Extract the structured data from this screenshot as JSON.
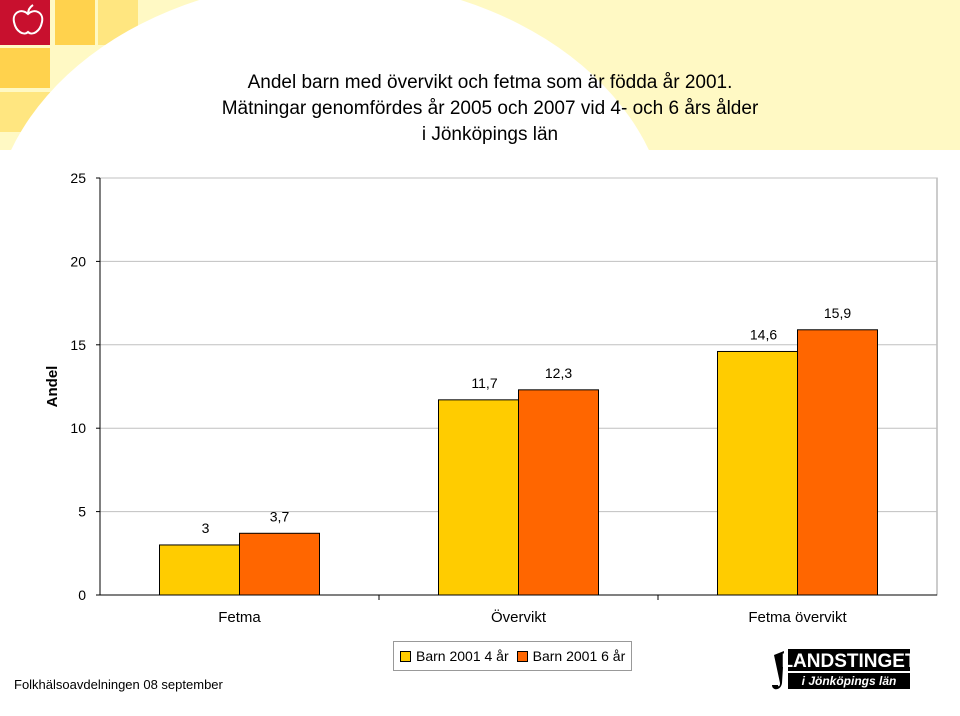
{
  "title_lines": [
    "Andel barn med övervikt och fetma som är födda år 2001.",
    "Mätningar genomfördes år 2005 och 2007 vid 4- och 6 års ålder",
    "i Jönköpings län"
  ],
  "colors": {
    "series1": "#ffcc00",
    "series2": "#ff6600",
    "background": "#fff9c4",
    "grid": "#c0c0c0"
  },
  "chart_data": {
    "type": "bar",
    "categories": [
      "Fetma",
      "Övervikt",
      "Fetma övervikt"
    ],
    "series": [
      {
        "name": "Barn 2001  4 år",
        "values": [
          3,
          11.7,
          14.6
        ],
        "labels": [
          "3",
          "11,7",
          "14,6"
        ]
      },
      {
        "name": "Barn 2001  6 år",
        "values": [
          3.7,
          12.3,
          15.9
        ],
        "labels": [
          "3,7",
          "12,3",
          "15,9"
        ]
      }
    ],
    "ylabel": "Andel",
    "xlabel": "",
    "ylim": [
      0,
      25
    ],
    "yticks": [
      0,
      5,
      10,
      15,
      20,
      25
    ],
    "ytick_labels": [
      "0",
      "5",
      "10",
      "15",
      "20",
      "25"
    ],
    "grid": true,
    "legend_position": "bottom-center"
  },
  "legend": {
    "item1": "Barn 2001  4 år",
    "item2": "Barn 2001  6 år"
  },
  "footer": "Folkhälsoavdelningen 08 september",
  "logo": {
    "line1": "LANDSTINGET",
    "line2": "i Jönköpings län",
    "icon": "landstinget-logo"
  },
  "corner_icon": "apple-icon"
}
